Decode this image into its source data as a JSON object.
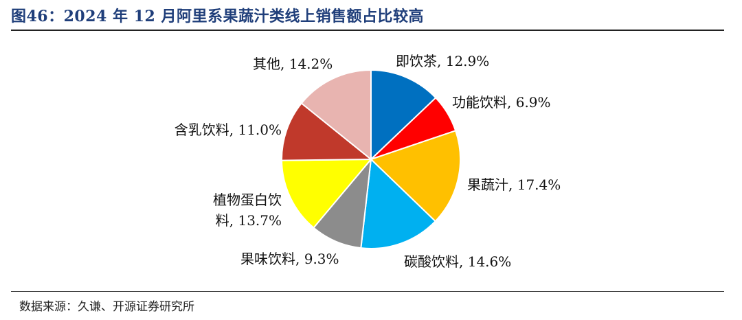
{
  "title": "图46：2024 年 12 月阿里系果蔬汁类线上销售额占比较高",
  "source": "数据来源：久谦、开源证券研究所",
  "chart_data": {
    "type": "pie",
    "title": "",
    "unit": "%",
    "slices": [
      {
        "label": "即饮茶",
        "value": 12.9,
        "text": "即饮茶, 12.9%",
        "color": "#0070c0"
      },
      {
        "label": "功能饮料",
        "value": 6.9,
        "text": "功能饮料, 6.9%",
        "color": "#ff0000"
      },
      {
        "label": "果蔬汁",
        "value": 17.4,
        "text": "果蔬汁, 17.4%",
        "color": "#ffc000"
      },
      {
        "label": "碳酸饮料",
        "value": 14.6,
        "text": "碳酸饮料, 14.6%",
        "color": "#00b0f0"
      },
      {
        "label": "果味饮料",
        "value": 9.3,
        "text": "果味饮料, 9.3%",
        "color": "#8c8c8c"
      },
      {
        "label": "植物蛋白饮料",
        "value": 13.7,
        "text_lines": [
          "植物蛋白饮",
          "料, 13.7%"
        ],
        "color": "#ffff00"
      },
      {
        "label": "含乳饮料",
        "value": 11.0,
        "text": "含乳饮料, 11.0%",
        "color": "#c0392b"
      },
      {
        "label": "其他",
        "value": 14.2,
        "text": "其他, 14.2%",
        "color": "#e8b4b0"
      }
    ]
  }
}
